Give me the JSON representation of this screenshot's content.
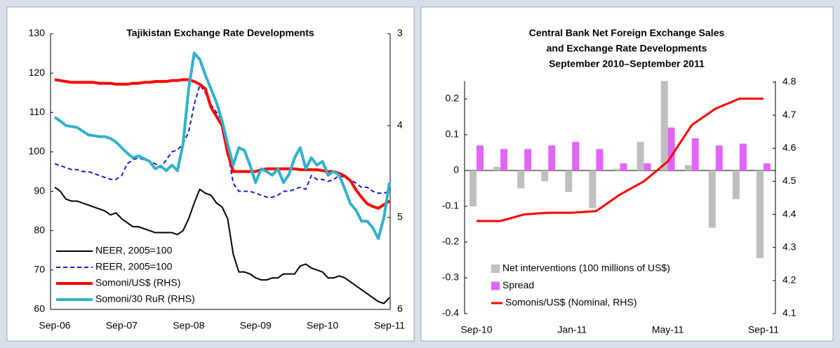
{
  "chart_data": [
    {
      "type": "line",
      "title": "Tajikistan Exchange Rate Developments",
      "categories": [
        "Sep-06",
        null,
        null,
        null,
        null,
        null,
        null,
        null,
        null,
        null,
        null,
        null,
        "Sep-07",
        null,
        null,
        null,
        null,
        null,
        null,
        null,
        null,
        null,
        null,
        null,
        "Sep-08",
        null,
        null,
        null,
        null,
        null,
        null,
        null,
        null,
        null,
        null,
        null,
        "Sep-09",
        null,
        null,
        null,
        null,
        null,
        null,
        null,
        null,
        null,
        null,
        null,
        "Sep-10",
        null,
        null,
        null,
        null,
        null,
        null,
        null,
        null,
        null,
        null,
        null,
        "Sep-11"
      ],
      "series": [
        {
          "name": "NEER, 2005=100",
          "color": "#000000",
          "values": [
            91,
            90,
            88,
            87.5,
            87.5,
            87,
            86.5,
            86,
            85.5,
            85,
            84,
            84.5,
            83,
            82,
            81,
            81,
            80.5,
            80,
            79.5,
            79.5,
            79.5,
            79.5,
            79,
            80,
            83,
            87,
            90.5,
            89.5,
            89,
            87,
            86,
            83,
            74,
            69.5,
            69.5,
            69,
            68,
            67.5,
            67.5,
            68,
            68,
            69,
            69,
            69,
            71,
            71.5,
            70.5,
            70,
            69.5,
            68,
            68,
            68.5,
            68,
            67,
            66,
            65,
            64,
            63,
            62,
            61.5,
            63
          ]
        },
        {
          "name": "REER, 2005=100",
          "color": "#1a1ad8",
          "dashed": true,
          "values": [
            97,
            96.5,
            96,
            95.5,
            95.5,
            95,
            95,
            94.5,
            94,
            93.5,
            93,
            93,
            94,
            97,
            98,
            98.5,
            98,
            97.5,
            97,
            96,
            98,
            100,
            100.5,
            102,
            105,
            112,
            117,
            115,
            112,
            110,
            108,
            100,
            92,
            90,
            90,
            90,
            89.5,
            89,
            88.5,
            88.5,
            89,
            90,
            90,
            90.5,
            91,
            90.5,
            94,
            93,
            93,
            92.5,
            93,
            94,
            93.5,
            93,
            92,
            91,
            91,
            90,
            89.5,
            89.5,
            90
          ]
        },
        {
          "name": "Somoni/US$ (RHS)",
          "color": "#ff0000",
          "axis": "y2",
          "values": [
            3.5,
            3.51,
            3.52,
            3.53,
            3.53,
            3.53,
            3.53,
            3.53,
            3.54,
            3.54,
            3.54,
            3.55,
            3.55,
            3.55,
            3.54,
            3.54,
            3.53,
            3.53,
            3.52,
            3.52,
            3.52,
            3.51,
            3.51,
            3.5,
            3.5,
            3.52,
            3.55,
            3.6,
            3.8,
            3.9,
            4.0,
            4.3,
            4.5,
            4.5,
            4.5,
            4.5,
            4.5,
            4.48,
            4.47,
            4.47,
            4.47,
            4.47,
            4.47,
            4.47,
            4.48,
            4.48,
            4.48,
            4.48,
            4.49,
            4.5,
            4.5,
            4.52,
            4.55,
            4.6,
            4.7,
            4.78,
            4.85,
            4.88,
            4.9,
            4.86,
            4.82
          ]
        },
        {
          "name": "Somoni/30 RuR (RHS)",
          "color": "#31b2c9",
          "axis": "y2",
          "values": [
            3.91,
            3.95,
            4.0,
            4.01,
            4.02,
            4.06,
            4.1,
            4.11,
            4.12,
            4.12,
            4.14,
            4.18,
            4.24,
            4.3,
            4.35,
            4.33,
            4.36,
            4.39,
            4.47,
            4.44,
            4.49,
            4.43,
            4.49,
            4.2,
            3.6,
            3.21,
            3.28,
            3.45,
            3.6,
            3.75,
            3.95,
            4.2,
            4.43,
            4.24,
            4.27,
            4.43,
            4.62,
            4.47,
            4.5,
            4.54,
            4.47,
            4.62,
            4.53,
            4.35,
            4.24,
            4.47,
            4.35,
            4.43,
            4.39,
            4.54,
            4.5,
            4.54,
            4.69,
            4.85,
            4.92,
            5.04,
            5.04,
            5.11,
            5.23,
            5.0,
            4.62
          ]
        }
      ],
      "ylim": [
        60,
        130
      ],
      "yticks": [
        60,
        70,
        80,
        90,
        100,
        110,
        120,
        130
      ],
      "y2lim": [
        6,
        3
      ],
      "y2ticks": [
        3,
        4,
        5,
        6
      ],
      "legend": "lower left"
    },
    {
      "type": "combo",
      "title": [
        "Central Bank Net Foreign Exchange Sales",
        "and Exchange Rate Developments",
        "September 2010–September  2011"
      ],
      "categories": [
        "Sep-10",
        null,
        null,
        null,
        "Jan-11",
        null,
        null,
        null,
        "May-11",
        null,
        null,
        null,
        "Sep-11"
      ],
      "series": [
        {
          "name": "Net interventions (100 millions of US$)",
          "type": "bar",
          "color": "#bfbfbf",
          "values": [
            -0.1,
            0.01,
            -0.05,
            -0.03,
            -0.06,
            -0.105,
            0.005,
            0.08,
            0.25,
            0.015,
            -0.16,
            -0.08,
            -0.245
          ]
        },
        {
          "name": "Spread",
          "type": "bar",
          "color": "#e066f5",
          "values": [
            0.07,
            0.06,
            0.06,
            0.07,
            0.08,
            0.06,
            0.02,
            0.02,
            0.12,
            0.09,
            0.07,
            0.075,
            0.02
          ]
        },
        {
          "name": "Somonis/US$ (Nominal, RHS)",
          "type": "line",
          "color": "#ff0000",
          "axis": "y2",
          "values": [
            4.38,
            4.38,
            4.4,
            4.405,
            4.405,
            4.41,
            4.46,
            4.5,
            4.56,
            4.67,
            4.72,
            4.75,
            4.75
          ]
        }
      ],
      "ylim": [
        -0.4,
        0.25
      ],
      "yticks": [
        -0.4,
        -0.3,
        -0.2,
        -0.1,
        0,
        0.1,
        0.2
      ],
      "y2lim": [
        4.1,
        4.8
      ],
      "y2ticks": [
        4.1,
        4.2,
        4.3,
        4.4,
        4.5,
        4.6,
        4.7,
        4.8
      ],
      "legend": "lower left"
    }
  ]
}
